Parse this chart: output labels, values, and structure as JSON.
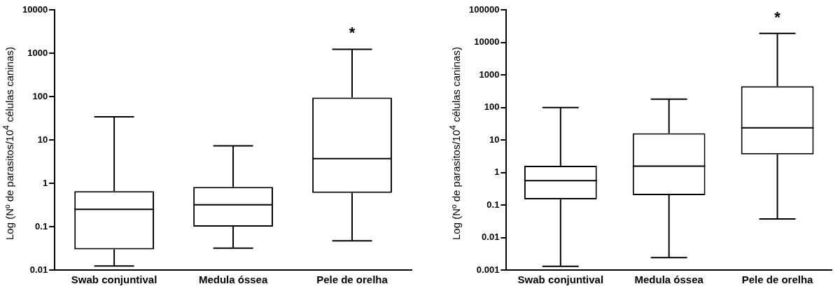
{
  "chart_data": [
    {
      "type": "box",
      "ylabel": "Log (Nº de parasitos/10$^{4}$ células caninas)",
      "categories": [
        "Swab conjuntival",
        "Medula óssea",
        "Pele de orelha"
      ],
      "log": "y",
      "ylim": [
        0.01,
        10000
      ],
      "yticks": [
        0.01,
        0.1,
        1,
        10,
        100,
        1000,
        10000
      ],
      "grid": false,
      "legend": false,
      "boxes": [
        {
          "low": 0.0124,
          "q1": 0.03,
          "median": 0.25,
          "q3": 0.66,
          "high": 34
        },
        {
          "low": 0.032,
          "q1": 0.1,
          "median": 0.32,
          "q3": 0.82,
          "high": 7.3
        },
        {
          "low": 0.047,
          "q1": 0.6,
          "median": 3.7,
          "q3": 95,
          "high": 1230
        }
      ],
      "annotations": [
        "*"
      ]
    },
    {
      "type": "box",
      "ylabel": "Log (Nº de parasitos/10$^{4}$ células caninas)",
      "categories": [
        "Swab conjuntival",
        "Medula óssea",
        "Pele de orelha"
      ],
      "log": "y",
      "ylim": [
        0.001,
        100000
      ],
      "yticks": [
        0.001,
        0.01,
        0.1,
        1,
        10,
        100,
        1000,
        10000,
        100000
      ],
      "grid": false,
      "legend": false,
      "boxes": [
        {
          "low": 0.0013,
          "q1": 0.148,
          "median": 0.56,
          "q3": 1.6,
          "high": 99
        },
        {
          "low": 0.0024,
          "q1": 0.2,
          "median": 1.57,
          "q3": 16,
          "high": 178
        },
        {
          "low": 0.037,
          "q1": 3.6,
          "median": 23.6,
          "q3": 450,
          "high": 18700
        }
      ],
      "annotations": [
        "*"
      ]
    }
  ]
}
